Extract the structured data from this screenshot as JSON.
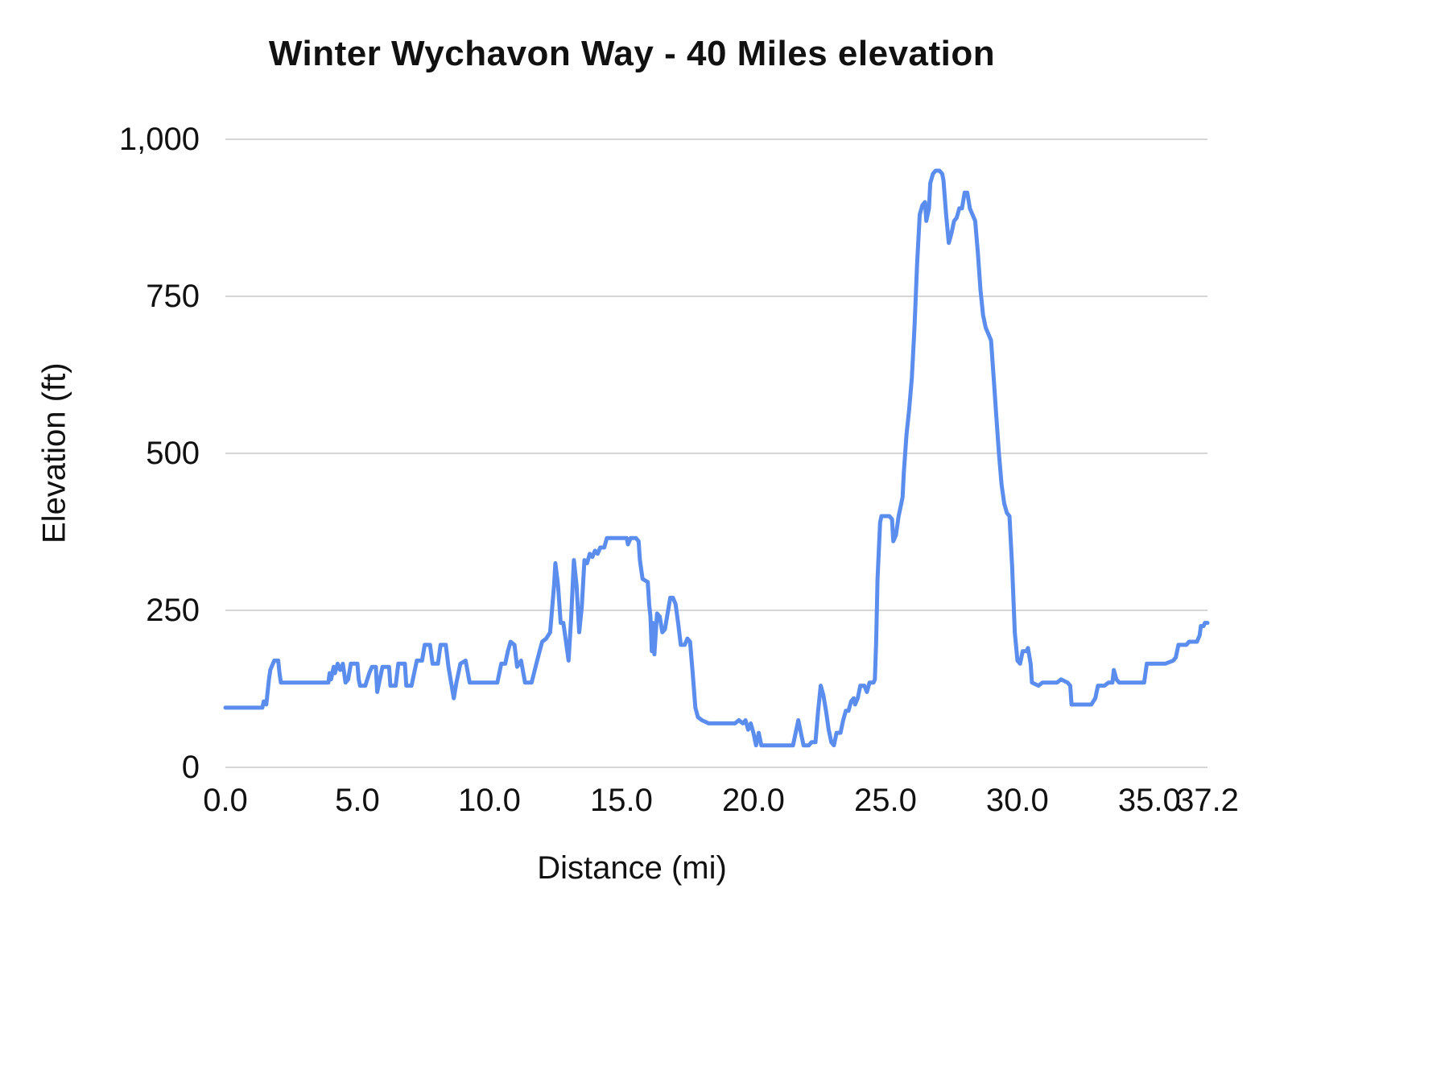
{
  "chart_data": {
    "type": "line",
    "title": "Winter Wychavon Way - 40 Miles elevation",
    "xlabel": "Distance (mi)",
    "ylabel": "Elevation (ft)",
    "xlim": [
      0,
      37.2
    ],
    "ylim": [
      0,
      1000
    ],
    "grid": true,
    "legend": "none",
    "line_color": "#5b8def",
    "grid_color": "#d6d6d6",
    "background": "#ffffff",
    "xticks": [
      {
        "v": 0,
        "label": "0.0"
      },
      {
        "v": 5,
        "label": "5.0"
      },
      {
        "v": 10,
        "label": "10.0"
      },
      {
        "v": 15,
        "label": "15.0"
      },
      {
        "v": 20,
        "label": "20.0"
      },
      {
        "v": 25,
        "label": "25.0"
      },
      {
        "v": 30,
        "label": "30.0"
      },
      {
        "v": 35,
        "label": "35.0"
      },
      {
        "v": 37.2,
        "label": "37.2"
      }
    ],
    "yticks": [
      {
        "v": 0,
        "label": "0"
      },
      {
        "v": 250,
        "label": "250"
      },
      {
        "v": 500,
        "label": "500"
      },
      {
        "v": 750,
        "label": "750"
      },
      {
        "v": 1000,
        "label": "1,000"
      }
    ],
    "series": [
      {
        "name": "Elevation (ft)",
        "points": [
          [
            0,
            95
          ],
          [
            0.9,
            95
          ],
          [
            1.4,
            95
          ],
          [
            1.45,
            105
          ],
          [
            1.55,
            100
          ],
          [
            1.65,
            140
          ],
          [
            1.7,
            155
          ],
          [
            1.75,
            160
          ],
          [
            1.85,
            170
          ],
          [
            2.0,
            170
          ],
          [
            2.05,
            150
          ],
          [
            2.1,
            135
          ],
          [
            2.5,
            135
          ],
          [
            3.0,
            135
          ],
          [
            3.5,
            135
          ],
          [
            3.9,
            135
          ],
          [
            3.95,
            150
          ],
          [
            4.0,
            140
          ],
          [
            4.1,
            160
          ],
          [
            4.15,
            150
          ],
          [
            4.25,
            165
          ],
          [
            4.35,
            155
          ],
          [
            4.45,
            165
          ],
          [
            4.55,
            135
          ],
          [
            4.65,
            140
          ],
          [
            4.75,
            165
          ],
          [
            5.0,
            165
          ],
          [
            5.05,
            140
          ],
          [
            5.1,
            130
          ],
          [
            5.3,
            130
          ],
          [
            5.45,
            150
          ],
          [
            5.55,
            160
          ],
          [
            5.7,
            160
          ],
          [
            5.75,
            120
          ],
          [
            5.8,
            130
          ],
          [
            5.95,
            160
          ],
          [
            6.2,
            160
          ],
          [
            6.25,
            130
          ],
          [
            6.45,
            130
          ],
          [
            6.55,
            165
          ],
          [
            6.8,
            165
          ],
          [
            6.85,
            130
          ],
          [
            7.05,
            130
          ],
          [
            7.15,
            150
          ],
          [
            7.25,
            170
          ],
          [
            7.45,
            170
          ],
          [
            7.55,
            195
          ],
          [
            7.75,
            195
          ],
          [
            7.85,
            165
          ],
          [
            8.05,
            165
          ],
          [
            8.15,
            195
          ],
          [
            8.35,
            195
          ],
          [
            8.45,
            160
          ],
          [
            8.55,
            135
          ],
          [
            8.65,
            110
          ],
          [
            8.75,
            135
          ],
          [
            8.9,
            165
          ],
          [
            9.1,
            170
          ],
          [
            9.25,
            135
          ],
          [
            9.5,
            135
          ],
          [
            10.3,
            135
          ],
          [
            10.45,
            165
          ],
          [
            10.6,
            165
          ],
          [
            10.7,
            185
          ],
          [
            10.8,
            200
          ],
          [
            10.95,
            195
          ],
          [
            11.05,
            160
          ],
          [
            11.2,
            170
          ],
          [
            11.35,
            135
          ],
          [
            11.6,
            135
          ],
          [
            11.75,
            160
          ],
          [
            11.9,
            185
          ],
          [
            12.0,
            200
          ],
          [
            12.15,
            205
          ],
          [
            12.3,
            215
          ],
          [
            12.45,
            290
          ],
          [
            12.5,
            325
          ],
          [
            12.6,
            290
          ],
          [
            12.7,
            230
          ],
          [
            12.8,
            230
          ],
          [
            12.9,
            200
          ],
          [
            13.0,
            170
          ],
          [
            13.1,
            240
          ],
          [
            13.2,
            330
          ],
          [
            13.3,
            290
          ],
          [
            13.4,
            215
          ],
          [
            13.5,
            255
          ],
          [
            13.6,
            330
          ],
          [
            13.7,
            325
          ],
          [
            13.8,
            340
          ],
          [
            13.9,
            335
          ],
          [
            14.0,
            345
          ],
          [
            14.1,
            340
          ],
          [
            14.2,
            350
          ],
          [
            14.35,
            350
          ],
          [
            14.45,
            365
          ],
          [
            15.2,
            365
          ],
          [
            15.25,
            355
          ],
          [
            15.35,
            365
          ],
          [
            15.55,
            365
          ],
          [
            15.65,
            360
          ],
          [
            15.7,
            330
          ],
          [
            15.8,
            300
          ],
          [
            16.0,
            295
          ],
          [
            16.05,
            260
          ],
          [
            16.1,
            240
          ],
          [
            16.15,
            185
          ],
          [
            16.2,
            230
          ],
          [
            16.25,
            180
          ],
          [
            16.35,
            245
          ],
          [
            16.45,
            240
          ],
          [
            16.55,
            215
          ],
          [
            16.65,
            220
          ],
          [
            16.75,
            245
          ],
          [
            16.85,
            270
          ],
          [
            16.95,
            270
          ],
          [
            17.05,
            260
          ],
          [
            17.15,
            230
          ],
          [
            17.25,
            195
          ],
          [
            17.4,
            195
          ],
          [
            17.5,
            205
          ],
          [
            17.6,
            200
          ],
          [
            17.7,
            150
          ],
          [
            17.8,
            95
          ],
          [
            17.9,
            80
          ],
          [
            18.05,
            75
          ],
          [
            18.3,
            70
          ],
          [
            19.3,
            70
          ],
          [
            19.45,
            75
          ],
          [
            19.6,
            70
          ],
          [
            19.7,
            75
          ],
          [
            19.8,
            60
          ],
          [
            19.9,
            70
          ],
          [
            20.0,
            55
          ],
          [
            20.1,
            35
          ],
          [
            20.2,
            55
          ],
          [
            20.3,
            35
          ],
          [
            21.5,
            35
          ],
          [
            21.6,
            55
          ],
          [
            21.7,
            75
          ],
          [
            21.8,
            55
          ],
          [
            21.9,
            35
          ],
          [
            22.1,
            35
          ],
          [
            22.2,
            40
          ],
          [
            22.35,
            40
          ],
          [
            22.45,
            90
          ],
          [
            22.55,
            130
          ],
          [
            22.65,
            115
          ],
          [
            22.75,
            90
          ],
          [
            22.85,
            60
          ],
          [
            22.95,
            40
          ],
          [
            23.05,
            35
          ],
          [
            23.15,
            55
          ],
          [
            23.3,
            55
          ],
          [
            23.4,
            75
          ],
          [
            23.5,
            90
          ],
          [
            23.6,
            90
          ],
          [
            23.7,
            105
          ],
          [
            23.8,
            110
          ],
          [
            23.85,
            100
          ],
          [
            23.95,
            110
          ],
          [
            24.05,
            130
          ],
          [
            24.2,
            130
          ],
          [
            24.3,
            120
          ],
          [
            24.4,
            135
          ],
          [
            24.55,
            135
          ],
          [
            24.6,
            140
          ],
          [
            24.65,
            200
          ],
          [
            24.7,
            300
          ],
          [
            24.8,
            390
          ],
          [
            24.85,
            400
          ],
          [
            25.15,
            400
          ],
          [
            25.25,
            395
          ],
          [
            25.3,
            360
          ],
          [
            25.4,
            370
          ],
          [
            25.5,
            400
          ],
          [
            25.6,
            420
          ],
          [
            25.65,
            430
          ],
          [
            25.7,
            470
          ],
          [
            25.8,
            530
          ],
          [
            25.9,
            570
          ],
          [
            26.0,
            620
          ],
          [
            26.1,
            700
          ],
          [
            26.2,
            800
          ],
          [
            26.3,
            880
          ],
          [
            26.4,
            895
          ],
          [
            26.5,
            900
          ],
          [
            26.55,
            870
          ],
          [
            26.65,
            890
          ],
          [
            26.7,
            930
          ],
          [
            26.8,
            945
          ],
          [
            26.9,
            950
          ],
          [
            27.05,
            950
          ],
          [
            27.15,
            945
          ],
          [
            27.2,
            935
          ],
          [
            27.3,
            880
          ],
          [
            27.4,
            835
          ],
          [
            27.5,
            850
          ],
          [
            27.6,
            870
          ],
          [
            27.7,
            875
          ],
          [
            27.8,
            890
          ],
          [
            27.9,
            890
          ],
          [
            28.0,
            915
          ],
          [
            28.1,
            915
          ],
          [
            28.2,
            890
          ],
          [
            28.3,
            880
          ],
          [
            28.4,
            870
          ],
          [
            28.5,
            820
          ],
          [
            28.6,
            760
          ],
          [
            28.7,
            720
          ],
          [
            28.8,
            700
          ],
          [
            28.9,
            690
          ],
          [
            29.0,
            680
          ],
          [
            29.1,
            620
          ],
          [
            29.2,
            560
          ],
          [
            29.3,
            500
          ],
          [
            29.4,
            450
          ],
          [
            29.5,
            420
          ],
          [
            29.6,
            405
          ],
          [
            29.7,
            400
          ],
          [
            29.8,
            320
          ],
          [
            29.9,
            215
          ],
          [
            30.0,
            170
          ],
          [
            30.1,
            165
          ],
          [
            30.2,
            185
          ],
          [
            30.35,
            185
          ],
          [
            30.4,
            190
          ],
          [
            30.5,
            165
          ],
          [
            30.55,
            135
          ],
          [
            30.8,
            130
          ],
          [
            30.95,
            135
          ],
          [
            31.5,
            135
          ],
          [
            31.65,
            140
          ],
          [
            31.9,
            135
          ],
          [
            32.0,
            130
          ],
          [
            32.05,
            100
          ],
          [
            32.8,
            100
          ],
          [
            32.95,
            110
          ],
          [
            33.05,
            130
          ],
          [
            33.3,
            130
          ],
          [
            33.45,
            135
          ],
          [
            33.6,
            135
          ],
          [
            33.65,
            155
          ],
          [
            33.75,
            140
          ],
          [
            33.85,
            135
          ],
          [
            34.8,
            135
          ],
          [
            34.9,
            165
          ],
          [
            35.6,
            165
          ],
          [
            35.9,
            170
          ],
          [
            36.0,
            175
          ],
          [
            36.1,
            195
          ],
          [
            36.4,
            195
          ],
          [
            36.5,
            200
          ],
          [
            36.8,
            200
          ],
          [
            36.9,
            210
          ],
          [
            36.95,
            225
          ],
          [
            37.05,
            225
          ],
          [
            37.1,
            230
          ],
          [
            37.2,
            230
          ]
        ]
      }
    ]
  }
}
